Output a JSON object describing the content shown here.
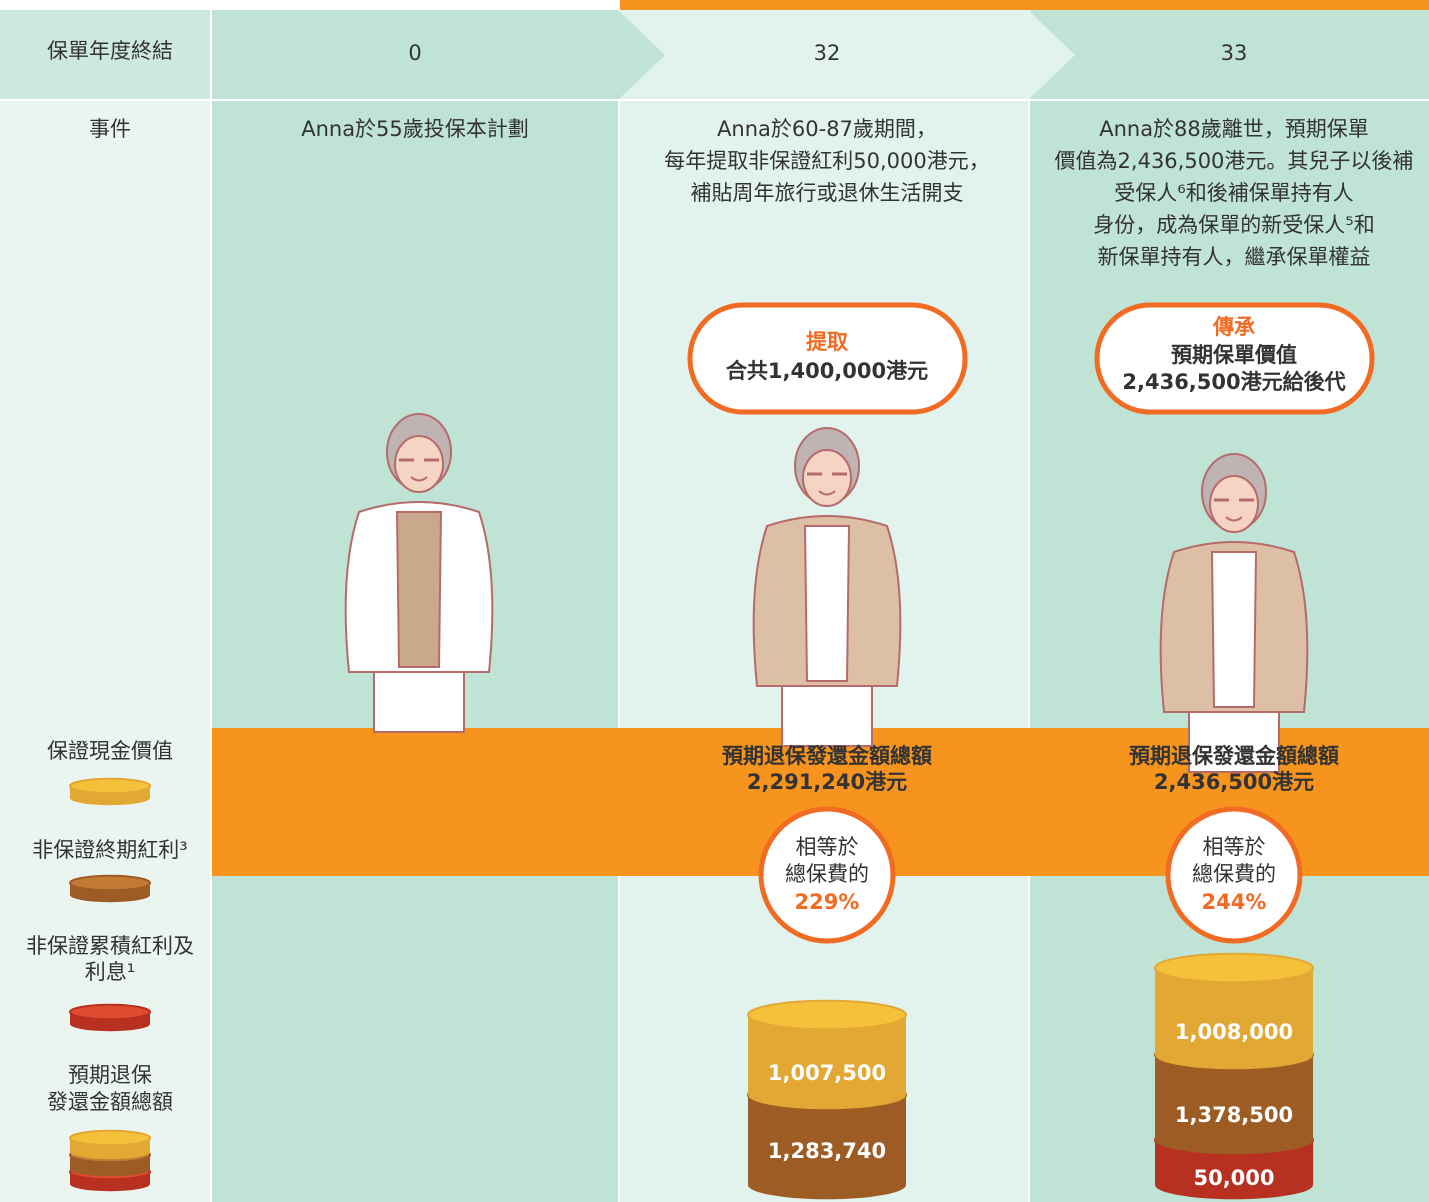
{
  "header": {
    "label": "保單年度終結",
    "years": [
      0,
      32,
      33
    ]
  },
  "events": {
    "label": "事件",
    "columns": [
      [
        "Anna於55歲投保本計劃"
      ],
      [
        "Anna於60-87歲期間，",
        "每年提取非保證紅利50,000港元，",
        "補貼周年旅行或退休生活開支"
      ],
      [
        "Anna於88歲離世，預期保單",
        "價值為2,436,500港元。其兒子以後補",
        "受保人⁶和後補保單持有人",
        "身份，成為保單的新受保人⁵和",
        "新保單持有人，繼承保單權益"
      ]
    ]
  },
  "bubbles": [
    {
      "title": "提取",
      "lines": [
        "合共1,400,000港元"
      ]
    },
    {
      "title": "傳承",
      "lines": [
        "預期保單價值",
        "2,436,500港元給後代"
      ]
    }
  ],
  "legend": [
    {
      "lines": [
        "保證現金價值"
      ]
    },
    {
      "lines": [
        "非保證終期紅利³"
      ]
    },
    {
      "lines": [
        "非保證累積紅利及",
        "利息¹"
      ]
    },
    {
      "lines": [
        "預期退保",
        "發還金額總額"
      ]
    }
  ],
  "totals": [
    {
      "title": "預期退保發還金額總額",
      "amount": "2,291,240港元",
      "compare": [
        "相等於",
        "總保費的"
      ],
      "percent": "229%",
      "stack": [
        "1,007,500",
        "1,283,740"
      ]
    },
    {
      "title": "預期退保發還金額總額",
      "amount": "2,436,500港元",
      "compare": [
        "相等於",
        "總保費的"
      ],
      "percent": "244%",
      "stack": [
        "1,008,000",
        "1,378,500",
        "50,000"
      ]
    }
  ]
}
